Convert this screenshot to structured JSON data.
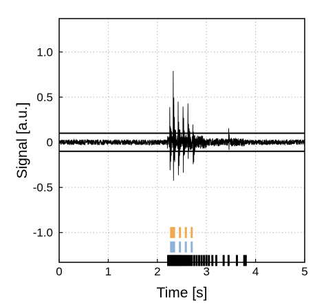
{
  "chart_data": {
    "type": "line",
    "xlabel": "Time [s]",
    "ylabel": "Signal [a.u.]",
    "xlim": [
      0,
      5
    ],
    "ylim": [
      -1.33,
      1.37
    ],
    "x_ticks": [
      0,
      1,
      2,
      3,
      4,
      5
    ],
    "x_tick_labels": [
      "0",
      "1",
      "2",
      "3",
      "4",
      "5"
    ],
    "y_ticks": [
      1.0,
      0.5,
      0,
      -0.5,
      -1.0
    ],
    "y_tick_labels": [
      "1.0",
      "0.5",
      "0",
      "-0.5",
      "-1.0"
    ],
    "grid": true,
    "grid_style": "dotted",
    "line_color": "#000000",
    "noise_amplitude": 0.03,
    "threshold_lines": [
      0.1,
      -0.1
    ],
    "bursts": [
      {
        "t": 2.25,
        "amp_pos": 0.45,
        "amp_neg": -0.45
      },
      {
        "t": 2.32,
        "amp_pos": 1.0,
        "amp_neg": -0.72
      },
      {
        "t": 2.42,
        "amp_pos": 0.48,
        "amp_neg": -0.55
      },
      {
        "t": 2.52,
        "amp_pos": 0.5,
        "amp_neg": -0.42
      },
      {
        "t": 2.62,
        "amp_pos": 0.48,
        "amp_neg": -0.28
      },
      {
        "t": 2.72,
        "amp_pos": 0.25,
        "amp_neg": -0.48
      },
      {
        "t": 3.45,
        "amp_pos": 0.15,
        "amp_neg": -0.08
      }
    ],
    "event_rows": [
      {
        "color": "#f0a94f",
        "y": -1.0,
        "times": [
          2.28,
          2.31,
          2.34,
          2.46,
          2.58,
          2.7
        ]
      },
      {
        "color": "#8fb3d8",
        "y": -1.16,
        "times": [
          2.28,
          2.31,
          2.34,
          2.46,
          2.58,
          2.7
        ]
      },
      {
        "color": "#000000",
        "y": -1.31,
        "times": [
          2.22,
          2.24,
          2.26,
          2.28,
          2.3,
          2.32,
          2.34,
          2.36,
          2.38,
          2.4,
          2.42,
          2.44,
          2.46,
          2.48,
          2.5,
          2.53,
          2.56,
          2.59,
          2.62,
          2.66,
          2.7,
          2.75,
          2.8,
          2.85,
          2.9,
          2.95,
          3.0,
          3.05,
          3.12,
          3.2,
          3.35,
          3.45,
          3.62,
          3.77,
          3.8
        ]
      }
    ]
  }
}
